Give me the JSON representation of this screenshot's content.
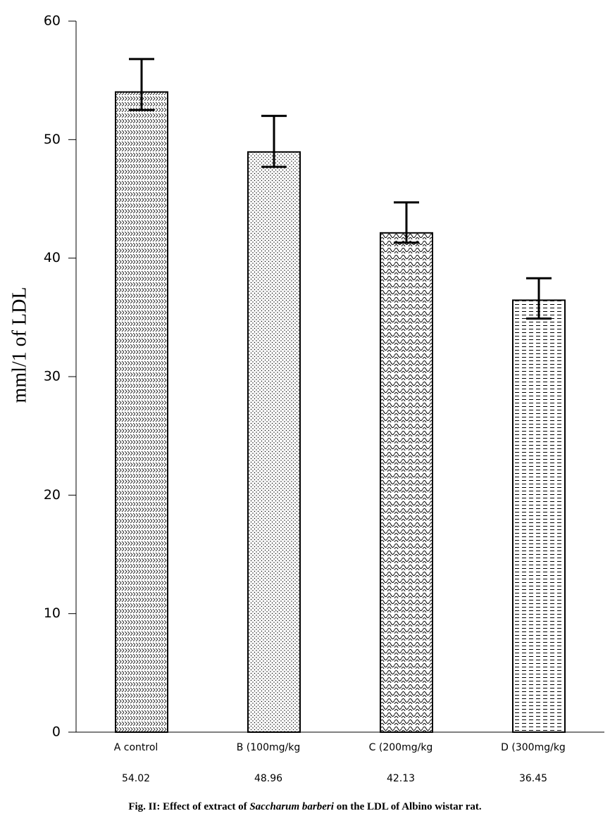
{
  "chart_data": {
    "type": "bar",
    "y_label": "mml/1 of LDL",
    "categories": [
      "A control",
      "B (100mg/kg",
      "C (200mg/kg",
      "D (300mg/kg"
    ],
    "values": [
      54.02,
      48.96,
      42.13,
      36.45
    ],
    "error_high": [
      56.8,
      52.0,
      44.7,
      38.3
    ],
    "error_low": [
      52.5,
      47.7,
      41.3,
      34.9
    ],
    "fill_patterns": [
      "zigzag",
      "dots",
      "weave",
      "dashes"
    ],
    "color": "#000000",
    "ylim": [
      0,
      60
    ],
    "yticks": [
      0,
      10,
      20,
      30,
      40,
      50,
      60
    ],
    "caption": {
      "lead": "Fig. II: Effect of extract of ",
      "species": "Saccharum barberi",
      "tail": " on the LDL of Albino wistar rat."
    }
  }
}
